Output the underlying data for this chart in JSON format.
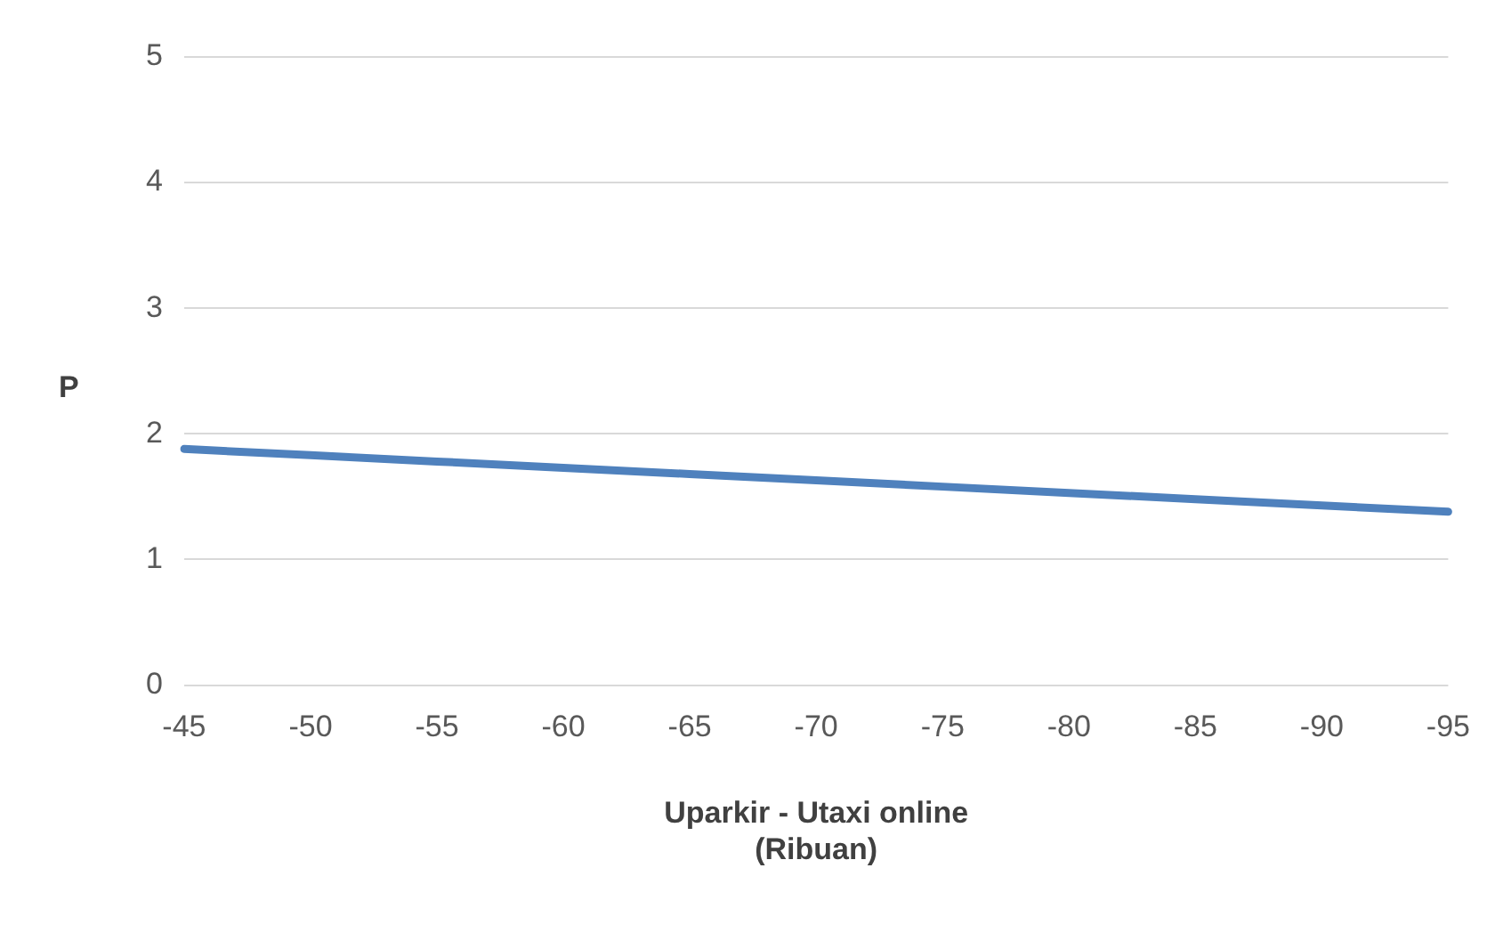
{
  "chart_data": {
    "type": "line",
    "xlabel": "Uparkir - Utaxi online\n(Ribuan)",
    "ylabel": "P",
    "categories": [
      "-45",
      "-50",
      "-55",
      "-60",
      "-65",
      "-70",
      "-75",
      "-80",
      "-85",
      "-90",
      "-95"
    ],
    "series": [
      {
        "color": "#4f81bd",
        "values": [
          1.88,
          1.83,
          1.78,
          1.73,
          1.68,
          1.63,
          1.58,
          1.53,
          1.48,
          1.43,
          1.38
        ]
      }
    ],
    "ylim": [
      0,
      5
    ],
    "yticks": [
      0,
      1,
      2,
      3,
      4,
      5
    ],
    "grid": "y",
    "legend": false,
    "marker": "none",
    "line_style": "solid"
  }
}
